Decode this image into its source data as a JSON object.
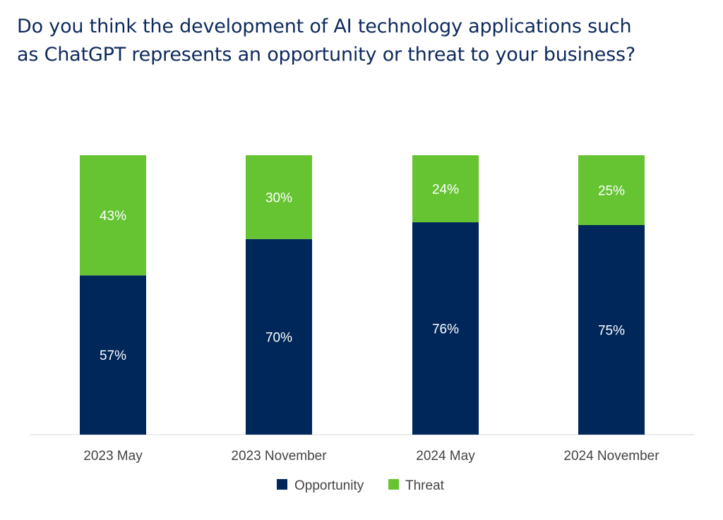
{
  "chart_data": {
    "type": "bar",
    "stacked": true,
    "title_lines": [
      "Do you think the development of AI technology applications such",
      "as ChatGPT represents an opportunity or threat to your business?"
    ],
    "categories": [
      "2023 May",
      "2023 November",
      "2024 May",
      "2024 November"
    ],
    "series": [
      {
        "name": "Opportunity",
        "values": [
          57,
          70,
          76,
          75
        ],
        "labels": [
          "57%",
          "70%",
          "76%",
          "75%"
        ],
        "color": "#00275a"
      },
      {
        "name": "Threat",
        "values": [
          43,
          30,
          24,
          25
        ],
        "labels": [
          "43%",
          "30%",
          "24%",
          "25%"
        ],
        "color": "#66c433"
      }
    ],
    "ylim": [
      0,
      100
    ],
    "grid": false,
    "legend_position": "bottom-center"
  }
}
